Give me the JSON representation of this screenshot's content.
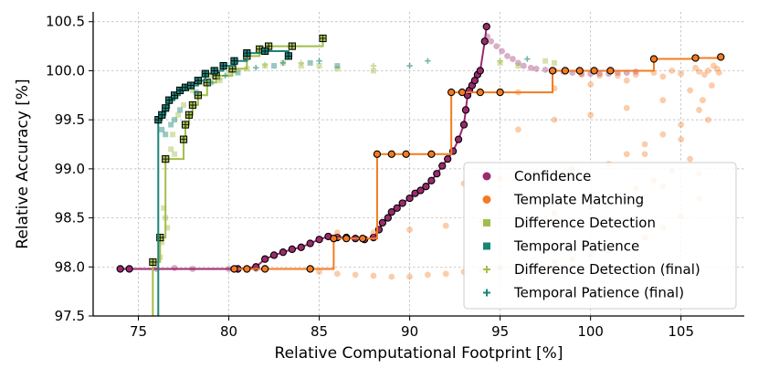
{
  "chart_data": {
    "type": "scatter",
    "xlabel": "Relative Computational Footprint [%]",
    "ylabel": "Relative Accuracy [%]",
    "xlim": [
      72.5,
      108.5
    ],
    "ylim": [
      97.5,
      100.6
    ],
    "xticks": [
      75,
      80,
      85,
      90,
      95,
      100,
      105
    ],
    "yticks": [
      97.5,
      98.0,
      98.5,
      99.0,
      99.5,
      100.0,
      100.5
    ],
    "xtick_labels": [
      "75",
      "80",
      "85",
      "90",
      "95",
      "100",
      "105"
    ],
    "ytick_labels": [
      "97.5",
      "98.0",
      "98.5",
      "99.0",
      "99.5",
      "100.0",
      "100.5"
    ],
    "grid": true,
    "legend_position": "lower-right",
    "colors": {
      "confidence": "#9b2a6e",
      "template": "#f47b20",
      "difference": "#a2be4a",
      "temporal": "#1b8478"
    },
    "series": [
      {
        "name": "Confidence",
        "marker": "circle",
        "color": "#9b2a6e",
        "cloud": [
          [
            94.3,
            100.35
          ],
          [
            94.5,
            100.3
          ],
          [
            94.8,
            100.25
          ],
          [
            95.1,
            100.2
          ],
          [
            95.4,
            100.15
          ],
          [
            95.7,
            100.12
          ],
          [
            96.0,
            100.08
          ],
          [
            96.3,
            100.05
          ],
          [
            96.7,
            100.03
          ],
          [
            97.0,
            100.02
          ],
          [
            97.5,
            100.01
          ],
          [
            98.0,
            100.0
          ],
          [
            98.5,
            99.99
          ],
          [
            99.0,
            99.98
          ],
          [
            99.5,
            99.97
          ],
          [
            100.0,
            99.97
          ],
          [
            100.5,
            99.97
          ],
          [
            101.0,
            99.97
          ],
          [
            101.5,
            99.98
          ],
          [
            102.0,
            99.98
          ],
          [
            102.5,
            99.99
          ],
          [
            80.0,
            97.98
          ],
          [
            80.5,
            97.97
          ],
          [
            81.0,
            97.97
          ],
          [
            81.5,
            97.98
          ],
          [
            82.0,
            97.99
          ],
          [
            78.0,
            97.98
          ],
          [
            77.0,
            97.99
          ],
          [
            76.0,
            97.98
          ]
        ],
        "frontier": [
          [
            74.0,
            97.98
          ],
          [
            74.5,
            97.98
          ],
          [
            80.5,
            97.98
          ],
          [
            81.5,
            98.0
          ],
          [
            82.0,
            98.08
          ],
          [
            82.5,
            98.12
          ],
          [
            83.0,
            98.15
          ],
          [
            83.5,
            98.18
          ],
          [
            84.0,
            98.2
          ],
          [
            84.5,
            98.24
          ],
          [
            85.0,
            98.28
          ],
          [
            85.5,
            98.31
          ],
          [
            86.0,
            98.3
          ],
          [
            86.5,
            98.3
          ],
          [
            87.0,
            98.29
          ],
          [
            87.5,
            98.28
          ],
          [
            88.0,
            98.3
          ],
          [
            88.3,
            98.38
          ],
          [
            88.5,
            98.45
          ],
          [
            88.8,
            98.5
          ],
          [
            89.0,
            98.56
          ],
          [
            89.3,
            98.6
          ],
          [
            89.6,
            98.65
          ],
          [
            90.0,
            98.7
          ],
          [
            90.3,
            98.75
          ],
          [
            90.6,
            98.78
          ],
          [
            90.9,
            98.82
          ],
          [
            91.2,
            98.88
          ],
          [
            91.5,
            98.95
          ],
          [
            91.8,
            99.03
          ],
          [
            92.1,
            99.1
          ],
          [
            92.4,
            99.18
          ],
          [
            92.7,
            99.3
          ],
          [
            93.0,
            99.45
          ],
          [
            93.1,
            99.6
          ],
          [
            93.2,
            99.75
          ],
          [
            93.3,
            99.8
          ],
          [
            93.45,
            99.85
          ],
          [
            93.6,
            99.9
          ],
          [
            93.75,
            99.96
          ],
          [
            93.9,
            100.0
          ],
          [
            94.15,
            100.3
          ],
          [
            94.25,
            100.45
          ]
        ]
      },
      {
        "name": "Template Matching",
        "marker": "circle",
        "color": "#f47b20",
        "cloud": [
          [
            85.0,
            97.95
          ],
          [
            86.0,
            97.93
          ],
          [
            87.0,
            97.92
          ],
          [
            88.0,
            97.91
          ],
          [
            89.0,
            97.9
          ],
          [
            90.0,
            97.9
          ],
          [
            91.0,
            97.92
          ],
          [
            92.0,
            97.93
          ],
          [
            93.0,
            97.95
          ],
          [
            94.0,
            97.97
          ],
          [
            95.0,
            97.99
          ],
          [
            96.0,
            98.01
          ],
          [
            97.0,
            98.03
          ],
          [
            98.0,
            98.05
          ],
          [
            99.0,
            98.08
          ],
          [
            100.0,
            98.12
          ],
          [
            101.0,
            98.16
          ],
          [
            102.0,
            98.22
          ],
          [
            103.0,
            98.3
          ],
          [
            104.0,
            98.4
          ],
          [
            105.0,
            98.52
          ],
          [
            106.0,
            98.7
          ],
          [
            86.0,
            98.35
          ],
          [
            88.0,
            98.35
          ],
          [
            90.0,
            98.38
          ],
          [
            92.0,
            98.42
          ],
          [
            94.0,
            98.46
          ],
          [
            96.0,
            98.5
          ],
          [
            98.0,
            98.55
          ],
          [
            100.0,
            98.62
          ],
          [
            102.0,
            98.7
          ],
          [
            104.0,
            98.82
          ],
          [
            106.0,
            98.95
          ],
          [
            93.0,
            98.85
          ],
          [
            95.0,
            98.9
          ],
          [
            97.0,
            98.95
          ],
          [
            99.0,
            99.0
          ],
          [
            101.0,
            99.05
          ],
          [
            103.0,
            99.15
          ],
          [
            105.0,
            99.3
          ],
          [
            106.5,
            99.5
          ],
          [
            96.0,
            99.4
          ],
          [
            98.0,
            99.5
          ],
          [
            100.0,
            99.55
          ],
          [
            102.0,
            99.62
          ],
          [
            104.0,
            99.7
          ],
          [
            105.5,
            99.8
          ],
          [
            96.0,
            99.78
          ],
          [
            98.0,
            99.82
          ],
          [
            100.0,
            99.86
          ],
          [
            102.0,
            99.9
          ],
          [
            104.0,
            99.94
          ],
          [
            105.0,
            99.97
          ],
          [
            106.0,
            99.99
          ],
          [
            106.5,
            100.0
          ],
          [
            107.0,
            100.02
          ],
          [
            106.8,
            100.05
          ],
          [
            107.1,
            99.98
          ],
          [
            106.3,
            99.96
          ],
          [
            105.8,
            100.03
          ],
          [
            104.5,
            100.0
          ],
          [
            103.5,
            99.98
          ],
          [
            102.5,
            99.96
          ],
          [
            101.5,
            99.95
          ],
          [
            100.5,
            99.95
          ],
          [
            99.5,
            99.96
          ],
          [
            106.0,
            99.6
          ],
          [
            105.0,
            99.45
          ],
          [
            104.0,
            99.35
          ],
          [
            103.0,
            99.25
          ],
          [
            102.0,
            99.15
          ],
          [
            106.7,
            99.85
          ],
          [
            106.2,
            99.7
          ],
          [
            105.5,
            99.1
          ],
          [
            104.5,
            98.98
          ],
          [
            103.5,
            98.88
          ],
          [
            102.5,
            98.8
          ],
          [
            101.5,
            98.74
          ],
          [
            100.5,
            98.68
          ]
        ],
        "frontier": [
          [
            80.3,
            97.98
          ],
          [
            81.0,
            97.98
          ],
          [
            82.0,
            97.98
          ],
          [
            84.5,
            97.98
          ],
          [
            85.8,
            98.29
          ],
          [
            86.5,
            98.29
          ],
          [
            87.4,
            98.29
          ],
          [
            88.2,
            99.15
          ],
          [
            89.0,
            99.15
          ],
          [
            89.8,
            99.15
          ],
          [
            91.2,
            99.15
          ],
          [
            92.3,
            99.78
          ],
          [
            92.9,
            99.78
          ],
          [
            93.9,
            99.78
          ],
          [
            95.0,
            99.78
          ],
          [
            97.9,
            100.0
          ],
          [
            98.6,
            100.0
          ],
          [
            99.4,
            100.0
          ],
          [
            100.2,
            100.0
          ],
          [
            101.1,
            100.0
          ],
          [
            103.5,
            100.12
          ],
          [
            105.8,
            100.13
          ],
          [
            107.2,
            100.14
          ]
        ]
      },
      {
        "name": "Difference Detection",
        "marker": "square",
        "color": "#a2be4a",
        "cloud": [
          [
            76.4,
            98.6
          ],
          [
            76.5,
            98.5
          ],
          [
            76.6,
            98.4
          ],
          [
            76.3,
            98.25
          ],
          [
            76.2,
            98.1
          ],
          [
            76.8,
            99.2
          ],
          [
            77.0,
            99.15
          ],
          [
            76.9,
            99.35
          ],
          [
            77.2,
            99.55
          ],
          [
            77.5,
            99.65
          ],
          [
            78.0,
            99.8
          ],
          [
            78.5,
            99.88
          ],
          [
            79.0,
            99.95
          ],
          [
            79.5,
            99.9
          ],
          [
            80.0,
            99.98
          ],
          [
            81.0,
            100.02
          ],
          [
            82.0,
            100.05
          ],
          [
            83.0,
            100.08
          ],
          [
            84.0,
            100.05
          ],
          [
            85.0,
            100.05
          ],
          [
            86.0,
            100.02
          ],
          [
            88.0,
            100.0
          ],
          [
            95.0,
            100.08
          ],
          [
            96.0,
            100.05
          ],
          [
            97.5,
            100.1
          ],
          [
            98.0,
            100.08
          ]
        ],
        "frontier": [
          [
            75.8,
            98.05
          ],
          [
            76.2,
            98.3
          ],
          [
            76.5,
            99.1
          ],
          [
            77.5,
            99.3
          ],
          [
            77.6,
            99.45
          ],
          [
            77.8,
            99.55
          ],
          [
            78.0,
            99.65
          ],
          [
            78.3,
            99.75
          ],
          [
            78.8,
            99.88
          ],
          [
            79.3,
            99.95
          ],
          [
            80.2,
            100.02
          ],
          [
            81.0,
            100.15
          ],
          [
            81.7,
            100.22
          ],
          [
            82.2,
            100.25
          ],
          [
            83.5,
            100.25
          ],
          [
            85.2,
            100.33
          ]
        ]
      },
      {
        "name": "Temporal Patience",
        "marker": "square",
        "color": "#1b8478",
        "cloud": [
          [
            76.3,
            99.4
          ],
          [
            76.5,
            99.35
          ],
          [
            76.8,
            99.45
          ],
          [
            77.0,
            99.5
          ],
          [
            77.3,
            99.6
          ],
          [
            78.2,
            99.78
          ],
          [
            79.0,
            99.88
          ],
          [
            80.5,
            99.98
          ],
          [
            82.5,
            100.05
          ],
          [
            84.5,
            100.08
          ],
          [
            86.0,
            100.05
          ]
        ],
        "frontier": [
          [
            76.1,
            99.5
          ],
          [
            76.3,
            99.55
          ],
          [
            76.5,
            99.62
          ],
          [
            76.7,
            99.7
          ],
          [
            77.0,
            99.75
          ],
          [
            77.3,
            99.8
          ],
          [
            77.6,
            99.83
          ],
          [
            77.9,
            99.85
          ],
          [
            78.3,
            99.9
          ],
          [
            78.7,
            99.97
          ],
          [
            79.2,
            100.0
          ],
          [
            79.7,
            100.05
          ],
          [
            80.3,
            100.1
          ],
          [
            81.0,
            100.18
          ],
          [
            82.0,
            100.2
          ],
          [
            83.3,
            100.15
          ]
        ]
      },
      {
        "name": "Difference Detection (final)",
        "marker": "plus",
        "color": "#a2be4a",
        "cloud": [
          [
            79.5,
            99.92
          ],
          [
            80.5,
            100.0
          ],
          [
            82.0,
            100.06
          ],
          [
            84.0,
            100.08
          ],
          [
            88.0,
            100.05
          ],
          [
            95.0,
            100.1
          ]
        ]
      },
      {
        "name": "Temporal Patience (final)",
        "marker": "plus",
        "color": "#1b8478",
        "cloud": [
          [
            79.8,
            99.95
          ],
          [
            81.5,
            100.03
          ],
          [
            83.0,
            100.08
          ],
          [
            85.0,
            100.1
          ],
          [
            90.0,
            100.05
          ],
          [
            91.0,
            100.1
          ],
          [
            96.5,
            100.12
          ]
        ]
      }
    ]
  }
}
